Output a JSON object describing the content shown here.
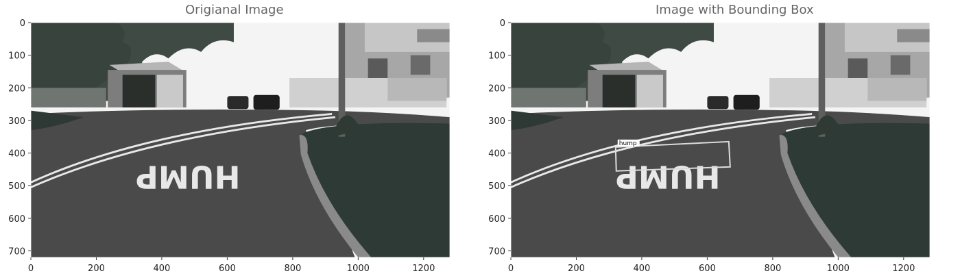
{
  "panels": [
    {
      "title": "Origianal Image",
      "x_ticks": [
        "0",
        "200",
        "400",
        "600",
        "800",
        "1000",
        "1200"
      ],
      "y_ticks": [
        "0",
        "100",
        "200",
        "300",
        "400",
        "500",
        "600",
        "700"
      ],
      "x_tick_values": [
        0,
        200,
        400,
        600,
        800,
        1000,
        1200
      ],
      "y_tick_values": [
        0,
        100,
        200,
        300,
        400,
        500,
        600,
        700
      ],
      "image_width": 1280,
      "image_height": 720,
      "scene": "grayscale street photo: curved road with 'HUMP' road marking, grass verge, trees, shed, parked cars, building"
    },
    {
      "title": "Image with Bounding Box",
      "x_ticks": [
        "0",
        "200",
        "400",
        "600",
        "800",
        "1000",
        "1200"
      ],
      "y_ticks": [
        "0",
        "100",
        "200",
        "300",
        "400",
        "500",
        "600",
        "700"
      ],
      "x_tick_values": [
        0,
        200,
        400,
        600,
        800,
        1000,
        1200
      ],
      "y_tick_values": [
        0,
        100,
        200,
        300,
        400,
        500,
        600,
        700
      ],
      "image_width": 1280,
      "image_height": 720,
      "bounding_box": {
        "label": "hump",
        "x1": 320,
        "y1": 365,
        "x2": 670,
        "y2": 455
      }
    }
  ],
  "colors": {
    "sky": "#f4f4f4",
    "road": "#4a4a4a",
    "grass": "#2d3a35",
    "trees": "#3f4a44",
    "marking": "#e8e8e8",
    "bbox": "#dcdcdc"
  }
}
